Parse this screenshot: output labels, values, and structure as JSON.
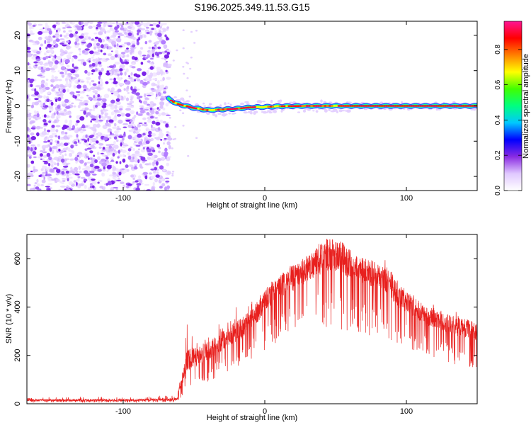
{
  "chart_data": [
    {
      "type": "heatmap",
      "title": "S196.2025.349.11.53.G15",
      "xlabel": "Height of straight line (km)",
      "ylabel": "Frequency (Hz)",
      "xlim": [
        -168,
        150
      ],
      "ylim": [
        -24,
        24
      ],
      "x_ticks": [
        -100,
        0,
        100
      ],
      "x_tick_labels": [
        "-100",
        "0",
        "100"
      ],
      "y_ticks": [
        20,
        10,
        0,
        -10,
        -20
      ],
      "y_tick_labels": [
        "20",
        "10",
        "0",
        "-10",
        "-20"
      ],
      "noise_region_x": [
        -168,
        -68
      ],
      "ridge_x": [
        -68,
        150
      ],
      "ridge_frequency": [
        {
          "x": -68,
          "y": 2
        },
        {
          "x": -62,
          "y": 0.6
        },
        {
          "x": -50,
          "y": -0.6
        },
        {
          "x": -40,
          "y": -1.2
        },
        {
          "x": -30,
          "y": -1.0
        },
        {
          "x": -20,
          "y": -0.8
        },
        {
          "x": -10,
          "y": -0.4
        },
        {
          "x": 0,
          "y": -0.3
        },
        {
          "x": 10,
          "y": -0.1
        },
        {
          "x": 30,
          "y": 0
        },
        {
          "x": 60,
          "y": 0
        },
        {
          "x": 100,
          "y": 0
        },
        {
          "x": 150,
          "y": 0
        }
      ],
      "colorbar": {
        "label": "Normalized spectral amplitude",
        "ticks": [
          0.0,
          0.2,
          0.4,
          0.6,
          0.8
        ],
        "tick_labels": [
          "0.0",
          "0.2",
          "0.4",
          "0.6",
          "0.8"
        ],
        "range": [
          0,
          0.96
        ],
        "colors": [
          "#ffffff",
          "#e0c8ff",
          "#8a2be2",
          "#0000ff",
          "#00c8ff",
          "#00ff80",
          "#40ff00",
          "#ffff00",
          "#ff8000",
          "#ff0000",
          "#ff1493"
        ]
      }
    },
    {
      "type": "line",
      "xlabel": "Height of straight line (km)",
      "ylabel": "SNR (10 * v/v)",
      "xlim": [
        -168,
        150
      ],
      "ylim": [
        0,
        700
      ],
      "x_ticks": [
        -100,
        0,
        100
      ],
      "x_tick_labels": [
        "-100",
        "0",
        "100"
      ],
      "y_ticks": [
        0,
        200,
        400,
        600
      ],
      "y_tick_labels": [
        "0",
        "200",
        "400",
        "600"
      ],
      "line_color": "#e8201e",
      "series": [
        {
          "name": "SNR",
          "envelope_x": [
            -168,
            -140,
            -110,
            -80,
            -62,
            -55,
            -45,
            -35,
            -25,
            -15,
            -5,
            5,
            15,
            25,
            35,
            45,
            55,
            65,
            75,
            85,
            95,
            105,
            115,
            125,
            135,
            150
          ],
          "envelope_upper": [
            25,
            30,
            28,
            30,
            40,
            330,
            280,
            330,
            380,
            420,
            440,
            520,
            560,
            620,
            650,
            690,
            680,
            600,
            590,
            600,
            500,
            460,
            420,
            400,
            380,
            360
          ],
          "envelope_lower": [
            5,
            5,
            5,
            5,
            5,
            60,
            80,
            100,
            140,
            160,
            200,
            240,
            270,
            300,
            320,
            300,
            290,
            300,
            280,
            260,
            240,
            220,
            200,
            180,
            160,
            140
          ],
          "envelope_mean": [
            15,
            15,
            15,
            16,
            18,
            180,
            200,
            240,
            280,
            320,
            380,
            460,
            500,
            540,
            580,
            620,
            600,
            560,
            540,
            520,
            440,
            400,
            360,
            340,
            320,
            300
          ]
        }
      ]
    }
  ]
}
